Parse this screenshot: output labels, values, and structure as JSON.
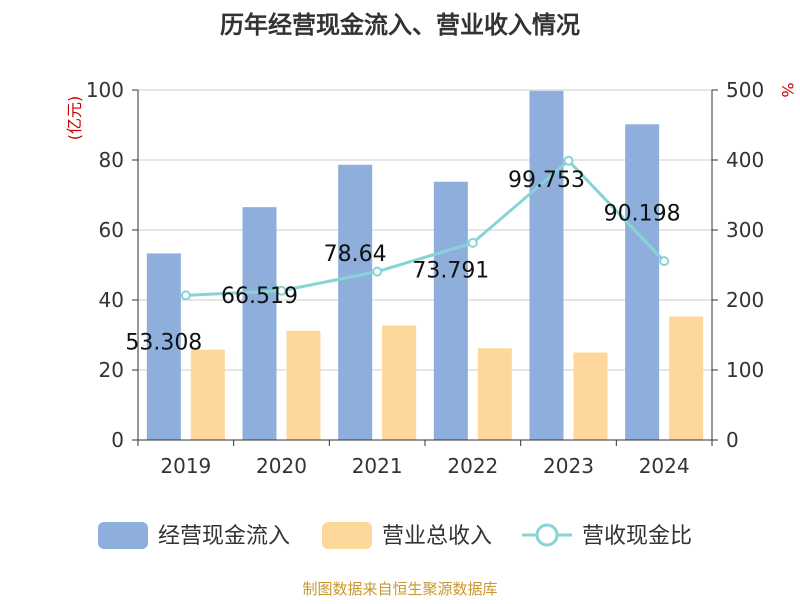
{
  "chart_data": {
    "type": "bar",
    "title": "历年经营现金流入、营业收入情况",
    "categories": [
      "2019",
      "2020",
      "2021",
      "2022",
      "2023",
      "2024"
    ],
    "series": [
      {
        "name": "经营现金流入",
        "axis": "left",
        "kind": "bar",
        "color": "#8eaedb",
        "values": [
          53.308,
          66.519,
          78.64,
          73.791,
          99.753,
          90.198
        ],
        "labels": [
          "53.308",
          "66.519",
          "78.64",
          "73.791",
          "99.753",
          "90.198"
        ]
      },
      {
        "name": "营业总收入",
        "axis": "left",
        "kind": "bar",
        "color": "#fdd89a",
        "values": [
          25.8,
          31.2,
          32.7,
          26.2,
          25.0,
          35.3
        ]
      },
      {
        "name": "营收现金比",
        "axis": "right",
        "kind": "line",
        "color": "#87d4d6",
        "values": [
          206.6,
          213.2,
          240.5,
          281.6,
          399.0,
          255.5
        ]
      }
    ],
    "ylabel_left": "(亿元)",
    "ylabel_right": "%",
    "ylim_left": [
      0,
      100
    ],
    "ylim_right": [
      0,
      500
    ],
    "yticks_left": [
      "0",
      "20",
      "40",
      "60",
      "80",
      "100"
    ],
    "yticks_right": [
      "0",
      "100",
      "200",
      "300",
      "400",
      "500"
    ],
    "grid": true,
    "legend_position": "bottom"
  },
  "source_note": "制图数据来自恒生聚源数据库"
}
